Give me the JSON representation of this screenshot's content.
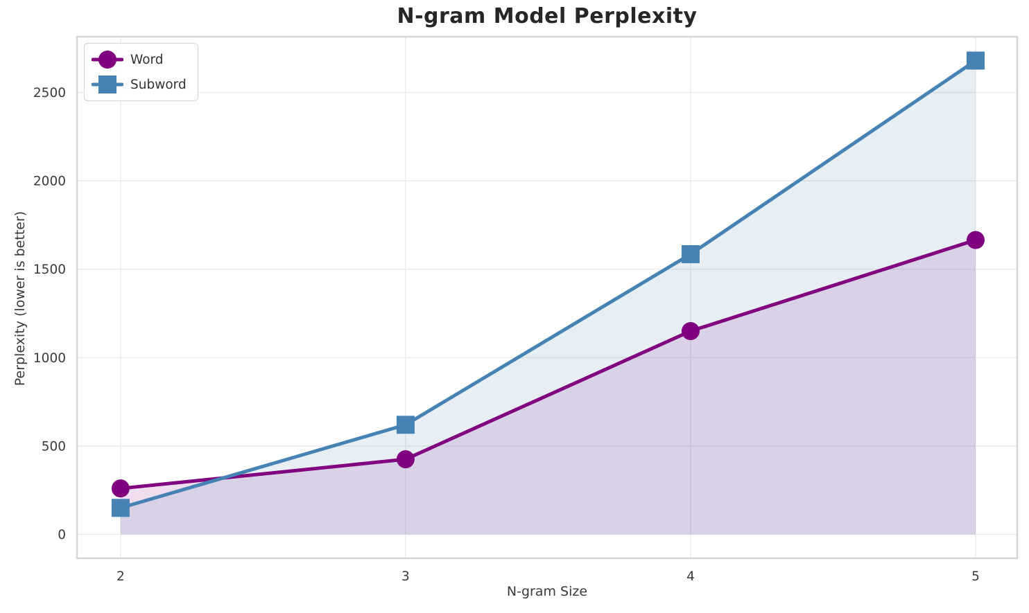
{
  "title": "N-gram Model Perplexity",
  "axes": {
    "xlabel": "N-gram Size",
    "ylabel": "Perplexity (lower is better)"
  },
  "legend": {
    "position": "upper left",
    "entries": [
      "Word",
      "Subword"
    ]
  },
  "chart_data": {
    "type": "line",
    "title": "N-gram Model Perplexity",
    "xlabel": "N-gram Size",
    "ylabel": "Perplexity (lower is better)",
    "x": [
      2,
      3,
      4,
      5
    ],
    "series": [
      {
        "name": "Word",
        "values": [
          260,
          425,
          1150,
          1665
        ],
        "color": "#800080",
        "marker": "circle",
        "area_fill": true
      },
      {
        "name": "Subword",
        "values": [
          150,
          620,
          1585,
          2680
        ],
        "color": "#4682B4",
        "marker": "square",
        "area_fill": true
      }
    ],
    "xticks": [
      2,
      3,
      4,
      5
    ],
    "yticks": [
      0,
      500,
      1000,
      1500,
      2000,
      2500
    ],
    "xlim": [
      1.847,
      5.146
    ],
    "ylim": [
      -135,
      2815
    ],
    "grid": true,
    "fill_alpha": 0.13,
    "line_width": 5,
    "marker_size": 13,
    "grid_color": "#ececec",
    "spine_color": "#d6d6d6",
    "background": "#ffffff"
  }
}
